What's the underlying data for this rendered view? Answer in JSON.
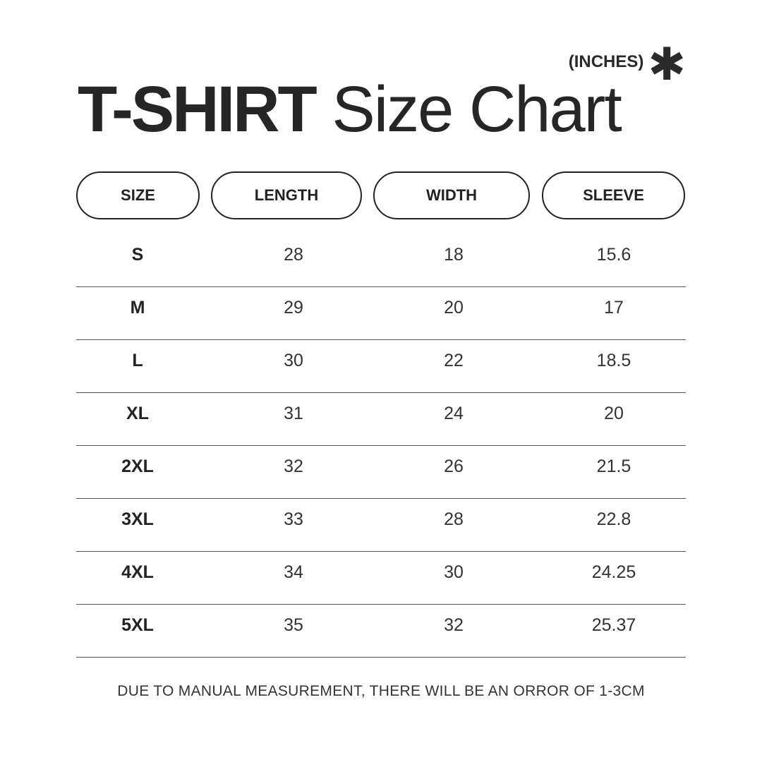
{
  "units_label": "(INCHES)",
  "units_icon": "asterisk-icon",
  "title": {
    "bold": "T-SHIRT",
    "regular": "Size Chart"
  },
  "headers": [
    "SIZE",
    "LENGTH",
    "WIDTH",
    "SLEEVE"
  ],
  "rows": [
    [
      "S",
      "28",
      "18",
      "15.6"
    ],
    [
      "M",
      "29",
      "20",
      "17"
    ],
    [
      "L",
      "30",
      "22",
      "18.5"
    ],
    [
      "XL",
      "31",
      "24",
      "20"
    ],
    [
      "2XL",
      "32",
      "26",
      "21.5"
    ],
    [
      "3XL",
      "33",
      "28",
      "22.8"
    ],
    [
      "4XL",
      "34",
      "30",
      "24.25"
    ],
    [
      "5XL",
      "35",
      "32",
      "25.37"
    ]
  ],
  "note": "DUE TO MANUAL MEASUREMENT, THERE WILL BE AN ORROR OF 1-3CM"
}
